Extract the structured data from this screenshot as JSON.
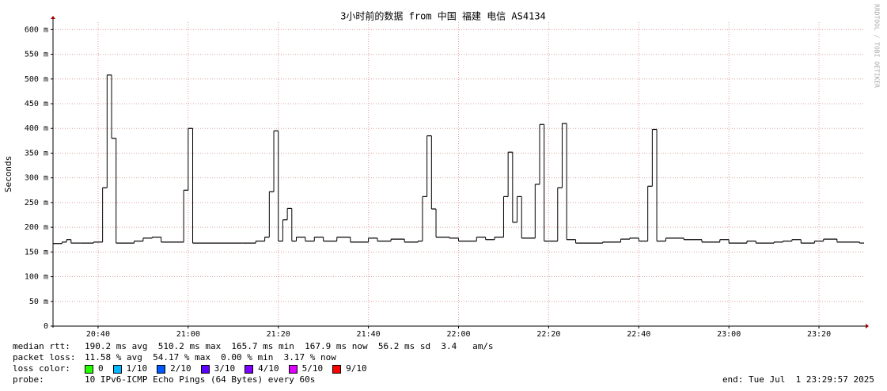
{
  "chart_data": {
    "type": "line",
    "title": "3小时前的数据 from 中国 福建 电信 AS4134",
    "y_label": "Seconds",
    "watermark": "RRDTOOL / TOBI OETIKER",
    "xlim": [
      "20:30",
      "23:30"
    ],
    "xticks": [
      "20:40",
      "21:00",
      "21:20",
      "21:40",
      "22:00",
      "22:20",
      "22:40",
      "23:00",
      "23:20"
    ],
    "ylim": [
      0,
      615
    ],
    "yticks": [
      0,
      {
        "value": 50,
        "label": "50 m"
      },
      {
        "value": 100,
        "label": "100 m"
      },
      {
        "value": 150,
        "label": "150 m"
      },
      {
        "value": 200,
        "label": "200 m"
      },
      {
        "value": 250,
        "label": "250 m"
      },
      {
        "value": 300,
        "label": "300 m"
      },
      {
        "value": 350,
        "label": "350 m"
      },
      {
        "value": 400,
        "label": "400 m"
      },
      {
        "value": 450,
        "label": "450 m"
      },
      {
        "value": 500,
        "label": "500 m"
      },
      {
        "value": 550,
        "label": "550 m"
      },
      {
        "value": 600,
        "label": "600 m"
      }
    ],
    "grid": true,
    "series": [
      {
        "name": "median rtt",
        "color": "#000000",
        "x": [
          "20:30",
          "20:32",
          "20:33",
          "20:34",
          "20:36",
          "20:39",
          "20:41",
          "20:42",
          "20:43",
          "20:44",
          "20:48",
          "20:50",
          "20:52",
          "20:54",
          "20:59",
          "21:00",
          "21:01",
          "21:06",
          "21:12",
          "21:15",
          "21:17",
          "21:18",
          "21:19",
          "21:20",
          "21:21",
          "21:22",
          "21:23",
          "21:24",
          "21:26",
          "21:28",
          "21:30",
          "21:33",
          "21:36",
          "21:40",
          "21:42",
          "21:45",
          "21:48",
          "21:51",
          "21:52",
          "21:53",
          "21:54",
          "21:55",
          "21:58",
          "22:00",
          "22:04",
          "22:06",
          "22:08",
          "22:10",
          "22:11",
          "22:12",
          "22:13",
          "22:14",
          "22:17",
          "22:18",
          "22:19",
          "22:22",
          "22:23",
          "22:24",
          "22:26",
          "22:32",
          "22:36",
          "22:38",
          "22:40",
          "22:42",
          "22:43",
          "22:44",
          "22:46",
          "22:50",
          "22:54",
          "22:58",
          "23:00",
          "23:04",
          "23:06",
          "23:10",
          "23:12",
          "23:14",
          "23:16",
          "23:19",
          "23:21",
          "23:24",
          "23:29"
        ],
        "values": [
          167,
          170,
          175,
          168,
          168,
          170,
          280,
          508,
          380,
          168,
          172,
          178,
          180,
          170,
          275,
          400,
          168,
          168,
          168,
          172,
          180,
          272,
          395,
          172,
          215,
          238,
          172,
          180,
          172,
          180,
          172,
          180,
          170,
          178,
          172,
          176,
          170,
          172,
          262,
          385,
          237,
          180,
          178,
          172,
          180,
          175,
          180,
          262,
          352,
          210,
          262,
          178,
          287,
          408,
          172,
          280,
          410,
          175,
          168,
          170,
          176,
          178,
          172,
          283,
          398,
          172,
          178,
          175,
          170,
          175,
          168,
          172,
          168,
          170,
          172,
          175,
          168,
          172,
          176,
          170,
          168
        ]
      }
    ],
    "stats": [
      {
        "label": "median rtt:",
        "text": "190.2 ms avg  510.2 ms max  165.7 ms min  167.9 ms now  56.2 ms sd  3.4   am/s"
      },
      {
        "label": "packet loss:",
        "text": "11.58 % avg  54.17 % max  0.00 % min  3.17 % now"
      }
    ],
    "loss_label": "loss color:",
    "loss_colors": [
      {
        "name": "0",
        "color": "#26ff00"
      },
      {
        "name": "1/10",
        "color": "#00b8ff"
      },
      {
        "name": "2/10",
        "color": "#0059ff"
      },
      {
        "name": "3/10",
        "color": "#5e00ff"
      },
      {
        "name": "4/10",
        "color": "#7e00ff"
      },
      {
        "name": "5/10",
        "color": "#dd00ff"
      },
      {
        "name": "9/10",
        "color": "#ff0000"
      }
    ],
    "probe_label": "probe:",
    "probe": "10 IPv6-ICMP Echo Pings (64 Bytes) every 60s",
    "end": "end: Tue Jul  1 23:29:57 2025"
  }
}
